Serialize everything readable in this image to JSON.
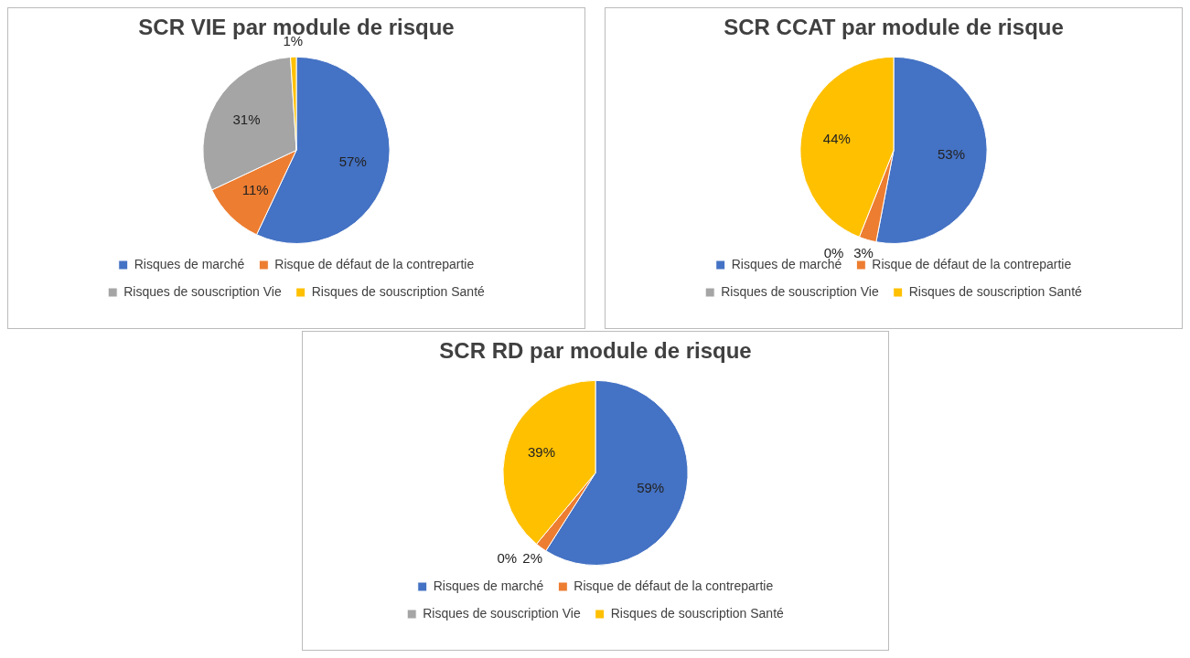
{
  "chart_data": [
    {
      "type": "pie",
      "title": "SCR VIE par module de risque",
      "categories": [
        "Risques de marché",
        "Risque de défaut de la contrepartie",
        "Risques de souscription Vie",
        "Risques de souscription Santé"
      ],
      "values": [
        57,
        11,
        31,
        1
      ],
      "value_labels": [
        "57%",
        "11%",
        "31%",
        "1%"
      ],
      "colors": [
        "#4472c4",
        "#ed7d31",
        "#a5a5a5",
        "#ffc000"
      ],
      "legend": "bottom"
    },
    {
      "type": "pie",
      "title": "SCR CCAT par module de risque",
      "categories": [
        "Risques de marché",
        "Risque de défaut de la contrepartie",
        "Risques de souscription Vie",
        "Risques de souscription Santé"
      ],
      "values": [
        53,
        3,
        0,
        44
      ],
      "value_labels": [
        "53%",
        "3%",
        "0%",
        "44%"
      ],
      "colors": [
        "#4472c4",
        "#ed7d31",
        "#a5a5a5",
        "#ffc000"
      ],
      "legend": "bottom"
    },
    {
      "type": "pie",
      "title": "SCR RD par module de risque",
      "categories": [
        "Risques de marché",
        "Risque de défaut de la contrepartie",
        "Risques de souscription Vie",
        "Risques de souscription Santé"
      ],
      "values": [
        59,
        2,
        0,
        39
      ],
      "value_labels": [
        "59%",
        "2%",
        "0%",
        "39%"
      ],
      "colors": [
        "#4472c4",
        "#ed7d31",
        "#a5a5a5",
        "#ffc000"
      ],
      "legend": "bottom"
    }
  ]
}
